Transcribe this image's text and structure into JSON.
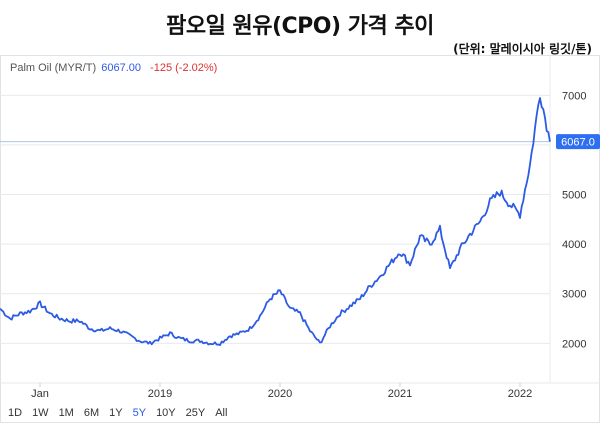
{
  "title": "팜오일 원유(CPO) 가격 추이",
  "unit_note": "(단위: 말레이시아 링깃/톤)",
  "quote": {
    "symbol": "Palm Oil (MYR/T)",
    "price": "6067.00",
    "change": "-125 (-2.02%)"
  },
  "price_badge": "6067.0",
  "ranges": [
    "1D",
    "1W",
    "1M",
    "6M",
    "1Y",
    "5Y",
    "10Y",
    "25Y",
    "All"
  ],
  "active_range": "5Y",
  "colors": {
    "line": "#2d5be3",
    "change": "#e03131",
    "badge": "#2d6ff0"
  },
  "chart_data": {
    "type": "line",
    "x_ticks": [
      "Jan",
      "2019",
      "2020",
      "2021",
      "2022"
    ],
    "y_ticks": [
      2000,
      3000,
      4000,
      5000,
      6000,
      7000
    ],
    "ylim": [
      1200,
      7450
    ],
    "xlim": [
      "2017-09",
      "2022-04"
    ],
    "current_value": 6067,
    "series": [
      {
        "x": [
          "2017-09",
          "2017-10",
          "2017-11",
          "2017-12",
          "2018-01",
          "2018-02",
          "2018-03",
          "2018-04",
          "2018-05",
          "2018-06",
          "2018-07",
          "2018-08",
          "2018-09",
          "2018-10",
          "2018-11",
          "2018-12",
          "2019-01",
          "2019-02",
          "2019-03",
          "2019-04",
          "2019-05",
          "2019-06",
          "2019-07",
          "2019-08",
          "2019-09",
          "2019-10",
          "2019-11",
          "2019-12",
          "2020-01",
          "2020-02",
          "2020-03",
          "2020-04",
          "2020-05",
          "2020-06",
          "2020-07",
          "2020-08",
          "2020-09",
          "2020-10",
          "2020-11",
          "2020-12",
          "2021-01",
          "2021-02",
          "2021-03",
          "2021-04",
          "2021-05",
          "2021-06",
          "2021-07",
          "2021-08",
          "2021-09",
          "2021-10",
          "2021-11",
          "2021-12",
          "2022-01",
          "2022-02",
          "2022-03",
          "2022-04"
        ],
        "values": [
          2700,
          2500,
          2600,
          2650,
          2800,
          2600,
          2500,
          2450,
          2450,
          2300,
          2250,
          2300,
          2250,
          2150,
          2050,
          2000,
          2100,
          2200,
          2100,
          2050,
          2050,
          2000,
          2000,
          2150,
          2200,
          2300,
          2550,
          2900,
          3050,
          2700,
          2600,
          2250,
          2000,
          2350,
          2600,
          2750,
          2900,
          3150,
          3350,
          3600,
          3850,
          3600,
          4150,
          4000,
          4300,
          3500,
          3900,
          4200,
          4450,
          4850,
          5050,
          4800,
          4600,
          5600,
          7050,
          6067
        ]
      }
    ]
  }
}
